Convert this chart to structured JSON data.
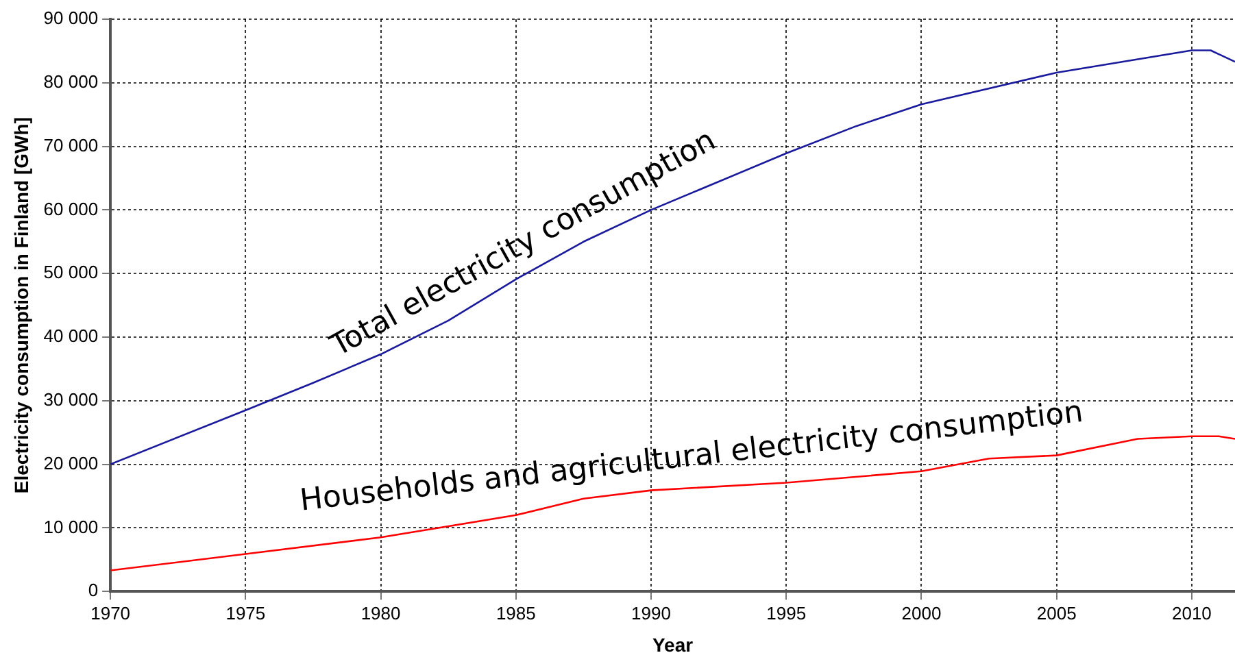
{
  "chart_data": {
    "type": "line",
    "xlabel": "Year",
    "ylabel": "Electricity consumption in Finland [GWh]",
    "xlim": [
      1970,
      2011.6
    ],
    "xticks": [
      1970,
      1975,
      1980,
      1985,
      1990,
      1995,
      2000,
      2005,
      2010
    ],
    "ylim": [
      0,
      90000
    ],
    "yticks": [
      {
        "value": 0,
        "label": "0"
      },
      {
        "value": 10000,
        "label": "10 000"
      },
      {
        "value": 20000,
        "label": "20 000"
      },
      {
        "value": 30000,
        "label": "30 000"
      },
      {
        "value": 40000,
        "label": "40 000"
      },
      {
        "value": 50000,
        "label": "50 000"
      },
      {
        "value": 60000,
        "label": "60 000"
      },
      {
        "value": 70000,
        "label": "70 000"
      },
      {
        "value": 80000,
        "label": "80 000"
      },
      {
        "value": 90000,
        "label": "90 000"
      }
    ],
    "grid": true,
    "legend": false,
    "marker": "none",
    "line_style": "solid",
    "series": [
      {
        "name": "Total electricity consumption",
        "color": "#1a1a9c",
        "x": [
          1970,
          1975,
          1977.5,
          1980,
          1982.5,
          1985,
          1987.5,
          1990,
          1995,
          1997.6,
          2000,
          2005,
          2010,
          2010.7,
          2011.6
        ],
        "values": [
          20000,
          28500,
          32800,
          37300,
          42600,
          49100,
          55000,
          60000,
          68900,
          73200,
          76600,
          81600,
          85100,
          85100,
          83300
        ]
      },
      {
        "name": "Households and agricultural electricity consumption",
        "color": "#ff0000",
        "x": [
          1970,
          1975,
          1980,
          1985,
          1987.5,
          1990,
          1995,
          2000,
          2002.5,
          2005,
          2008,
          2010,
          2011,
          2011.6
        ],
        "values": [
          3300,
          5900,
          8500,
          12000,
          14600,
          15900,
          17100,
          18900,
          20900,
          21400,
          24000,
          24400,
          24400,
          24000
        ]
      }
    ]
  }
}
